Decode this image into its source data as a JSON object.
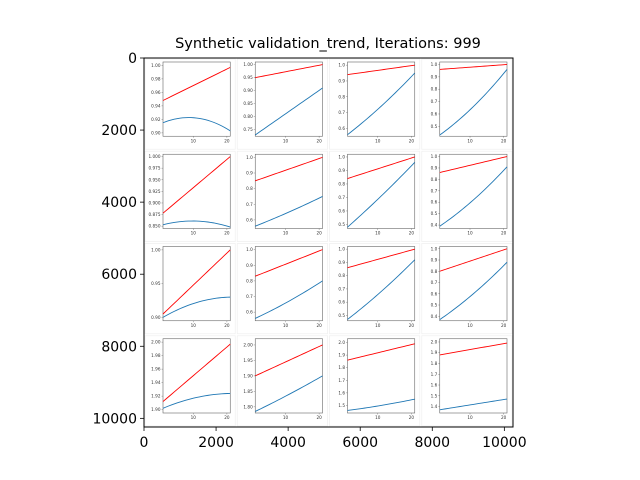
{
  "chart_data": {
    "type": "image",
    "title": "Synthetic validation_trend, Iterations: 999",
    "xlim": [
      0,
      10240
    ],
    "ylim": [
      10240,
      0
    ],
    "x_ticks": [
      "0",
      "2000",
      "4000",
      "6000",
      "8000",
      "10000"
    ],
    "y_ticks": [
      "0",
      "2000",
      "4000",
      "6000",
      "8000",
      "10000"
    ],
    "grid": {
      "rows": 4,
      "cols": 4
    },
    "colors": {
      "series_a": "#ff0000",
      "series_b": "#1f77b4"
    },
    "thumbnails": [
      {
        "x_ticks": [
          "10",
          "20"
        ],
        "y_ticks": [
          "1.00",
          "0.98",
          "0.96",
          "0.94",
          "0.92",
          "0.90"
        ],
        "ylim": [
          0.895,
          1.005
        ],
        "red": [
          0.948,
          0.997
        ],
        "blue": [
          0.915,
          0.922,
          0.903
        ],
        "blue_shape": "hump"
      },
      {
        "x_ticks": [
          "10",
          "20"
        ],
        "y_ticks": [
          "1.00",
          "0.95",
          "0.90",
          "0.85",
          "0.80",
          "0.75"
        ],
        "ylim": [
          0.725,
          1.01
        ],
        "red": [
          0.95,
          1.0
        ],
        "blue": [
          0.73,
          0.82,
          0.91
        ],
        "blue_shape": "line"
      },
      {
        "x_ticks": [
          "10",
          "20"
        ],
        "y_ticks": [
          "1.0",
          "0.9",
          "0.8",
          "0.7",
          "0.6"
        ],
        "ylim": [
          0.55,
          1.02
        ],
        "red": [
          0.94,
          1.0
        ],
        "blue": [
          0.56,
          0.74,
          0.95
        ],
        "blue_shape": "curve"
      },
      {
        "x_ticks": [
          "10",
          "20"
        ],
        "y_ticks": [
          "1.0",
          "0.9",
          "0.8",
          "0.7",
          "0.6",
          "0.5"
        ],
        "ylim": [
          0.42,
          1.02
        ],
        "red": [
          0.96,
          1.0
        ],
        "blue": [
          0.43,
          0.66,
          0.96
        ],
        "blue_shape": "curve"
      },
      {
        "x_ticks": [
          "10",
          "20"
        ],
        "y_ticks": [
          "1.000",
          "0.975",
          "0.950",
          "0.925",
          "0.900",
          "0.875",
          "0.850"
        ],
        "ylim": [
          0.845,
          1.005
        ],
        "red": [
          0.878,
          1.0
        ],
        "blue": [
          0.853,
          0.861,
          0.848
        ],
        "blue_shape": "hump"
      },
      {
        "x_ticks": [
          "10",
          "20"
        ],
        "y_ticks": [
          "1.0",
          "0.9",
          "0.8",
          "0.7",
          "0.6"
        ],
        "ylim": [
          0.545,
          1.02
        ],
        "red": [
          0.85,
          1.0
        ],
        "blue": [
          0.56,
          0.65,
          0.75
        ],
        "blue_shape": "line"
      },
      {
        "x_ticks": [
          "10",
          "20"
        ],
        "y_ticks": [
          "1.0",
          "0.9",
          "0.8",
          "0.7",
          "0.6",
          "0.5"
        ],
        "ylim": [
          0.47,
          1.02
        ],
        "red": [
          0.84,
          1.0
        ],
        "blue": [
          0.48,
          0.71,
          0.96
        ],
        "blue_shape": "curve"
      },
      {
        "x_ticks": [
          "10",
          "20"
        ],
        "y_ticks": [
          "1.0",
          "0.9",
          "0.8",
          "0.7",
          "0.6",
          "0.5",
          "0.4"
        ],
        "ylim": [
          0.37,
          1.02
        ],
        "red": [
          0.86,
          1.0
        ],
        "blue": [
          0.39,
          0.62,
          0.91
        ],
        "blue_shape": "curve"
      },
      {
        "x_ticks": [
          "10",
          "20"
        ],
        "y_ticks": [
          "1.00",
          "0.95",
          "0.90"
        ],
        "ylim": [
          0.895,
          1.005
        ],
        "red": [
          0.905,
          1.0
        ],
        "blue": [
          0.9,
          0.922,
          0.93
        ],
        "blue_shape": "sat"
      },
      {
        "x_ticks": [
          "10",
          "20"
        ],
        "y_ticks": [
          "1.0",
          "0.9",
          "0.8",
          "0.7",
          "0.6"
        ],
        "ylim": [
          0.545,
          1.02
        ],
        "red": [
          0.83,
          1.0
        ],
        "blue": [
          0.56,
          0.67,
          0.8
        ],
        "blue_shape": "line"
      },
      {
        "x_ticks": [
          "10",
          "20"
        ],
        "y_ticks": [
          "1.0",
          "0.9",
          "0.8",
          "0.7",
          "0.6",
          "0.5"
        ],
        "ylim": [
          0.46,
          1.02
        ],
        "red": [
          0.86,
          1.0
        ],
        "blue": [
          0.47,
          0.68,
          0.92
        ],
        "blue_shape": "curve"
      },
      {
        "x_ticks": [
          "10",
          "20"
        ],
        "y_ticks": [
          "1.0",
          "0.9",
          "0.8",
          "0.7",
          "0.6",
          "0.5",
          "0.4"
        ],
        "ylim": [
          0.36,
          1.02
        ],
        "red": [
          0.8,
          1.0
        ],
        "blue": [
          0.37,
          0.6,
          0.88
        ],
        "blue_shape": "curve"
      },
      {
        "x_ticks": [
          "10",
          "20"
        ],
        "y_ticks": [
          "2.00",
          "1.98",
          "1.96",
          "1.94",
          "1.92",
          "1.90"
        ],
        "ylim": [
          1.895,
          2.005
        ],
        "red": [
          1.912,
          1.997
        ],
        "blue": [
          1.902,
          1.918,
          1.924
        ],
        "blue_shape": "sat"
      },
      {
        "x_ticks": [
          "10",
          "20"
        ],
        "y_ticks": [
          "2.00",
          "1.95",
          "1.90",
          "1.85",
          "1.80"
        ],
        "ylim": [
          1.78,
          2.02
        ],
        "red": [
          1.9,
          2.0
        ],
        "blue": [
          1.785,
          1.84,
          1.9
        ],
        "blue_shape": "line"
      },
      {
        "x_ticks": [
          "10",
          "20"
        ],
        "y_ticks": [
          "2.0",
          "1.9",
          "1.8",
          "1.7",
          "1.6",
          "1.5"
        ],
        "ylim": [
          1.44,
          2.03
        ],
        "red": [
          1.86,
          1.99
        ],
        "blue": [
          1.46,
          1.5,
          1.55
        ],
        "blue_shape": "line"
      },
      {
        "x_ticks": [
          "10",
          "20"
        ],
        "y_ticks": [
          "2.0",
          "1.9",
          "1.8",
          "1.7",
          "1.6",
          "1.5",
          "1.4"
        ],
        "ylim": [
          1.34,
          2.03
        ],
        "red": [
          1.88,
          1.99
        ],
        "blue": [
          1.37,
          1.42,
          1.47
        ],
        "blue_shape": "line"
      }
    ]
  }
}
